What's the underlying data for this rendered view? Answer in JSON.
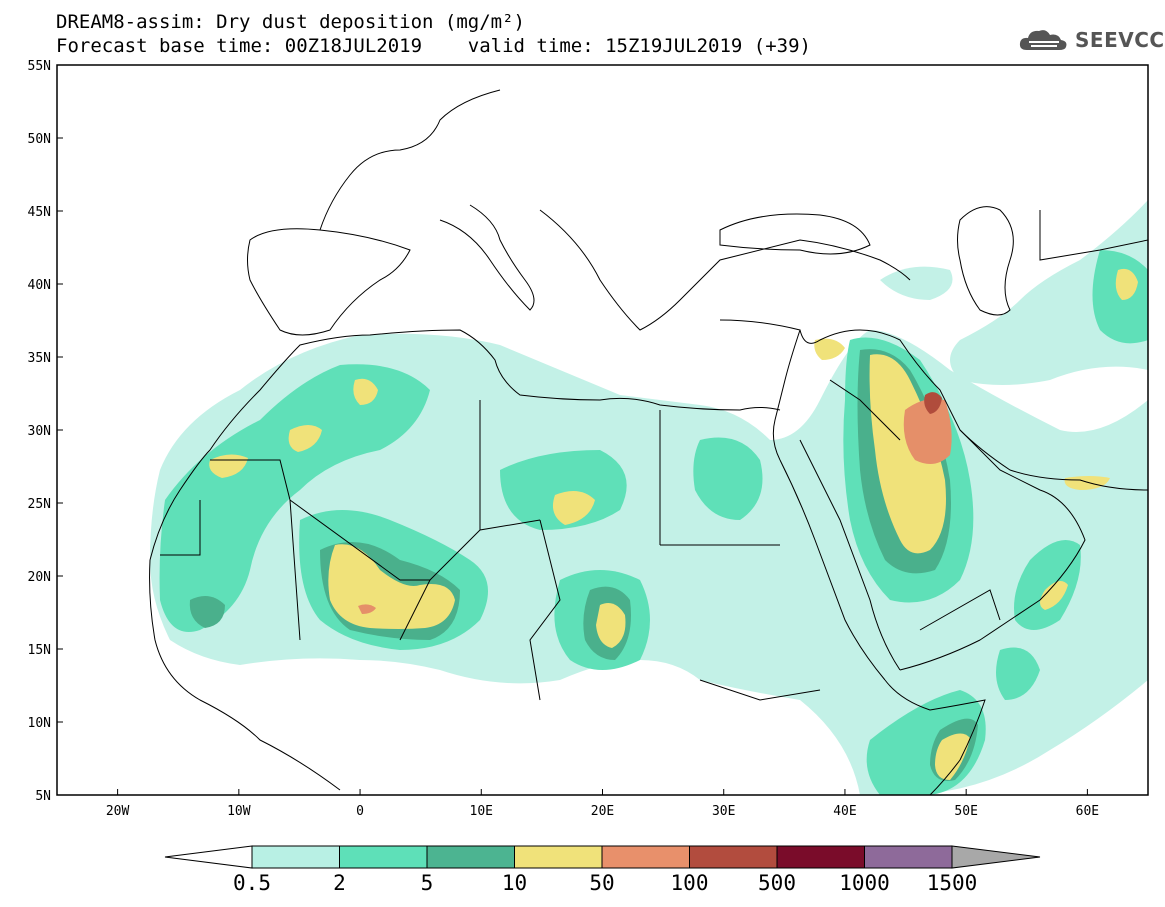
{
  "header": {
    "title_line1": "DREAM8-assim: Dry dust deposition (mg/m²)",
    "title_line2": "Forecast base time: 00Z18JUL2019    valid time: 15Z19JUL2019 (+39)"
  },
  "logo": {
    "text": "SEEVCCC",
    "icon": "cloud-logo-icon"
  },
  "map": {
    "lon_labels": [
      "20W",
      "10W",
      "0",
      "10E",
      "20E",
      "30E",
      "40E",
      "50E",
      "60E"
    ],
    "lat_labels": [
      "55N",
      "50N",
      "45N",
      "40N",
      "35N",
      "30N",
      "25N",
      "20N",
      "15N",
      "10N",
      "5N"
    ],
    "lon_range": [
      -25,
      65
    ],
    "lat_range": [
      5,
      55
    ]
  },
  "colorbar": {
    "labels": [
      "0.5",
      "2",
      "5",
      "10",
      "50",
      "100",
      "500",
      "1000",
      "1500"
    ],
    "colors": [
      "#b8f0e4",
      "#5ee0b8",
      "#4cb491",
      "#f0e27a",
      "#e8906b",
      "#b24c3e",
      "#7a0c2a",
      "#8e6a9a"
    ],
    "below_color": "#ffffff",
    "above_color": "#a8a8a8"
  },
  "palette": {
    "land_line": "#000000",
    "c05": "#c3f1e7",
    "c2": "#5fe0b8",
    "c5": "#4ab08c",
    "c10": "#f0e27a",
    "c50": "#e58f69",
    "c100": "#b04c3c"
  }
}
